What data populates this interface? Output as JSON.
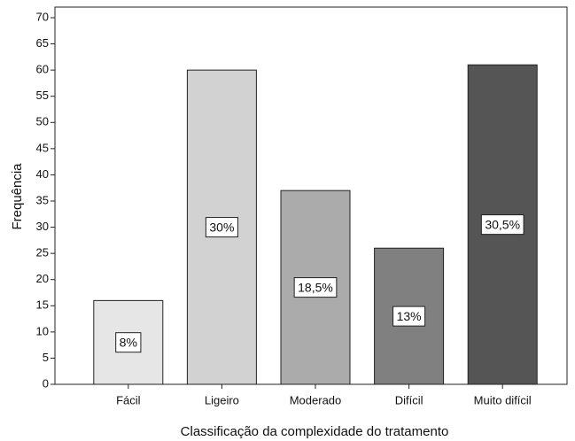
{
  "chart_data": {
    "type": "bar",
    "categories": [
      "Fácil",
      "Ligeiro",
      "Moderado",
      "Difícil",
      "Muito difícil"
    ],
    "values": [
      16,
      60,
      37,
      26,
      61
    ],
    "value_labels": [
      "8%",
      "30%",
      "18,5%",
      "13%",
      "30,5%"
    ],
    "colors": [
      "#e6e6e6",
      "#d2d2d2",
      "#ababab",
      "#808080",
      "#555555"
    ],
    "ylim": [
      0,
      70
    ],
    "yticks": [
      0,
      5,
      10,
      15,
      20,
      25,
      30,
      35,
      40,
      45,
      50,
      55,
      60,
      65,
      70
    ],
    "x_label": "Classificação da complexidade do tratamento",
    "y_label": "Frequência"
  }
}
